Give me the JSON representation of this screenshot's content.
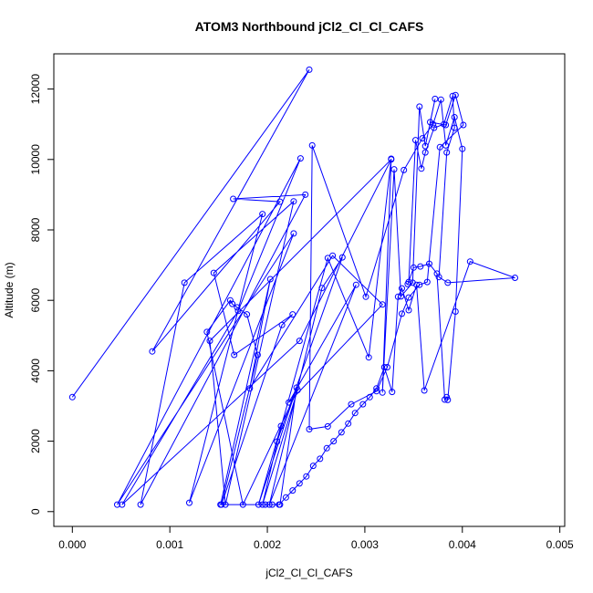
{
  "chart_data": {
    "type": "line",
    "title": "ATOM3 Northbound jCl2_Cl_Cl_CAFS",
    "xlabel": "jCl2_Cl_Cl_CAFS",
    "ylabel": "Altitude (m)",
    "xlim": [
      -0.00019,
      0.00505
    ],
    "ylim": [
      -420,
      13000
    ],
    "xticks": [
      0.0,
      0.001,
      0.002,
      0.003,
      0.004,
      0.005
    ],
    "xtick_labels": [
      "0.000",
      "0.001",
      "0.002",
      "0.003",
      "0.004",
      "0.005"
    ],
    "yticks": [
      0,
      2000,
      4000,
      6000,
      8000,
      10000,
      12000
    ],
    "ytick_labels": [
      "0",
      "2000",
      "4000",
      "6000",
      "8000",
      "10000",
      "12000"
    ],
    "grid": false,
    "color": "#0000ff",
    "series": [
      {
        "x": [
          0.0,
          0.00243,
          0.00082,
          0.00213,
          0.00165,
          0.00239,
          0.0007,
          0.00115,
          0.00195,
          0.0012,
          0.00227,
          0.00046,
          0.00234,
          0.0017,
          0.00051,
          0.00233,
          0.00327,
          0.00141,
          0.00157,
          0.00227,
          0.00145,
          0.00166,
          0.00226,
          0.00215,
          0.00153,
          0.0019,
          0.00179,
          0.00169,
          0.00164,
          0.00162,
          0.00138,
          0.00175,
          0.00231,
          0.00195,
          0.00214,
          0.00191,
          0.0023,
          0.00213,
          0.00152,
          0.00203,
          0.00182,
          0.00267,
          0.00318,
          0.00222,
          0.00291,
          0.00202,
          0.00256,
          0.00277,
          0.0021,
          0.00262,
          0.00304,
          0.00327,
          0.00318,
          0.0033,
          0.00337,
          0.00349,
          0.00356,
          0.00362,
          0.00372,
          0.00367,
          0.00383,
          0.00393,
          0.00401,
          0.00377,
          0.00364,
          0.00356,
          0.00345,
          0.00338,
          0.00323,
          0.00312,
          0.00286,
          0.00262,
          0.00243,
          0.00246,
          0.00301,
          0.0034,
          0.00359,
          0.0037,
          0.00378,
          0.00383,
          0.00392,
          0.004,
          0.00393,
          0.00385,
          0.00384,
          0.00382,
          0.00374,
          0.00366,
          0.00357,
          0.0035,
          0.00344,
          0.00345,
          0.00352,
          0.00358,
          0.00362,
          0.00371,
          0.00381,
          0.0039,
          0.00392,
          0.00384,
          0.00376,
          0.00385,
          0.00454,
          0.00408,
          0.00361,
          0.00353,
          0.00345,
          0.00338,
          0.00334,
          0.00328,
          0.0032,
          0.00312,
          0.00305,
          0.00298,
          0.0029,
          0.00283,
          0.00276,
          0.00268,
          0.00261,
          0.00254,
          0.00247,
          0.0024,
          0.00233,
          0.00226,
          0.00219,
          0.00212,
          0.00205,
          0.00198
        ],
        "y": [
          3250,
          12550,
          4550,
          8800,
          8880,
          9000,
          200,
          6500,
          8450,
          250,
          7900,
          200,
          10030,
          5700,
          200,
          4850,
          10000,
          4850,
          200,
          8810,
          6780,
          4450,
          5600,
          5300,
          200,
          4450,
          5600,
          5800,
          5900,
          6000,
          5100,
          200,
          3450,
          200,
          2430,
          200,
          3520,
          200,
          200,
          6600,
          3500,
          7270,
          5880,
          3100,
          6440,
          200,
          6350,
          7220,
          1990,
          7200,
          4380,
          10020,
          3380,
          9720,
          6110,
          6500,
          11500,
          10380,
          11720,
          11060,
          10980,
          11830,
          10980,
          10350,
          6520,
          6440,
          6080,
          5620,
          4100,
          3420,
          3050,
          2420,
          2340,
          10400,
          6100,
          9700,
          10600,
          11000,
          11700,
          10400,
          11200,
          10300,
          5680,
          3170,
          3250,
          3180,
          6760,
          7040,
          6960,
          6930,
          6460,
          6520,
          10550,
          9740,
          10200,
          10900,
          11000,
          11800,
          10900,
          10200,
          6660,
          6500,
          6640,
          7100,
          3440,
          6440,
          5720,
          6340,
          6100,
          3400,
          4100,
          3500,
          3250,
          3050,
          2800,
          2500,
          2250,
          2000,
          1800,
          1500,
          1300,
          1000,
          800,
          600,
          400,
          200,
          200,
          200
        ]
      }
    ]
  }
}
